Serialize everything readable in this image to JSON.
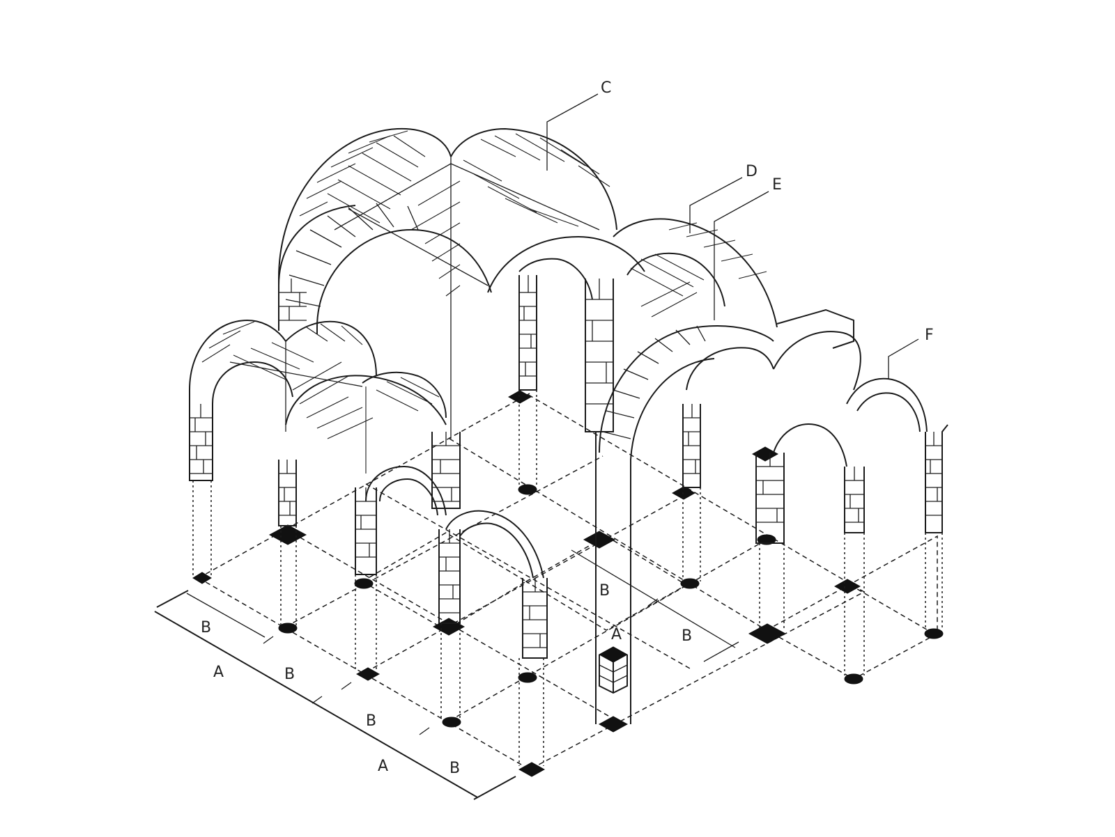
{
  "labels": {
    "C": "C",
    "D": "D",
    "E": "E",
    "F": "F",
    "pier_A": "A"
  },
  "dimensions": {
    "left_side": [
      "B",
      "A",
      "B",
      "B",
      "A",
      "B"
    ],
    "right_side": [
      "B",
      "B"
    ]
  }
}
